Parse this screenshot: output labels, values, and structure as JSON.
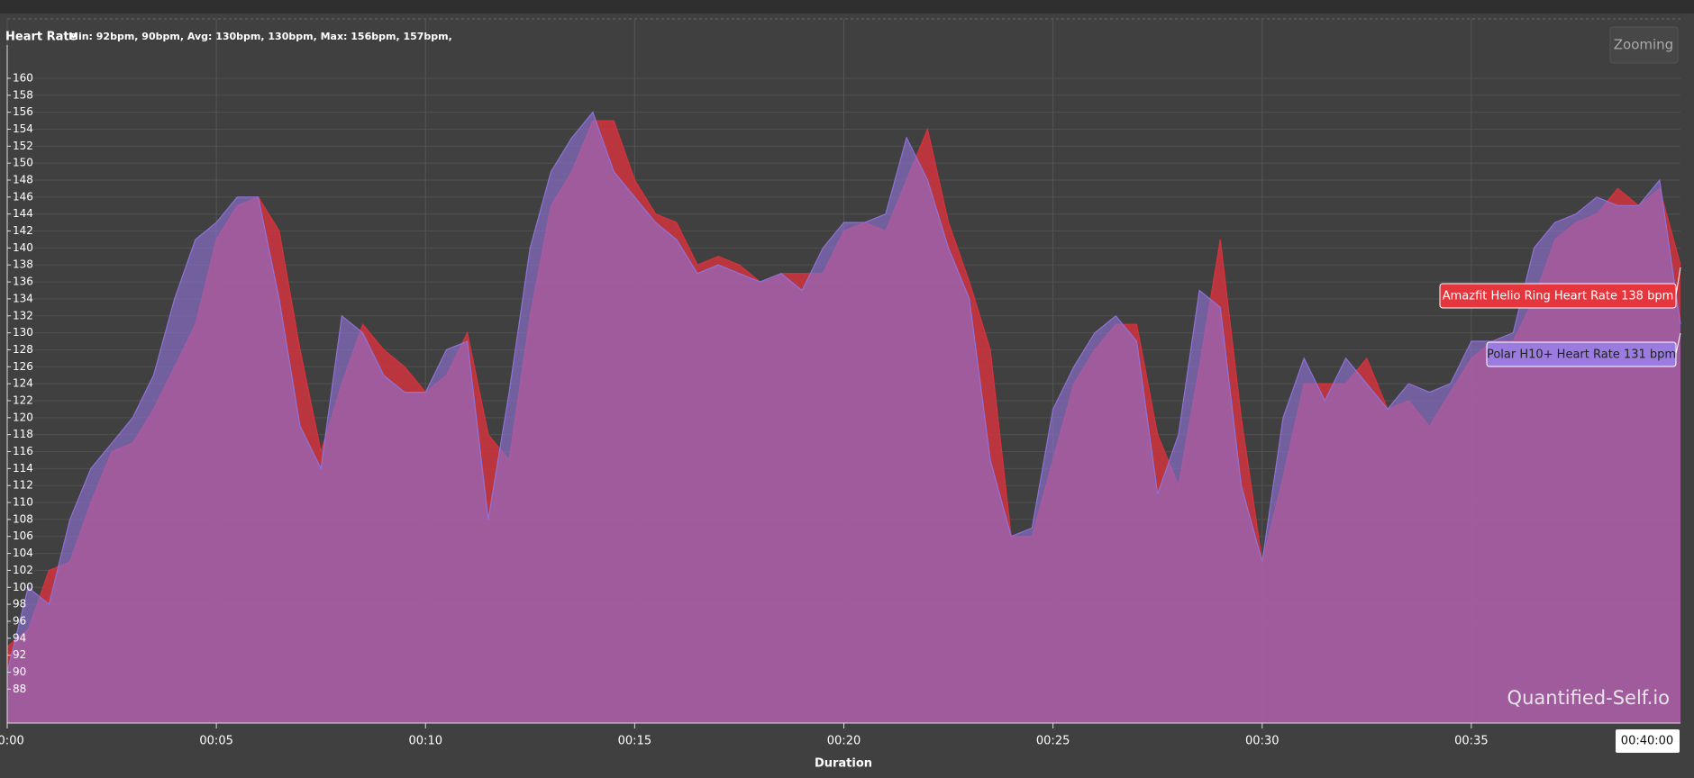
{
  "chart_data": {
    "type": "area",
    "title": "Heart Rate",
    "subtitle": "Min: 92bpm, 90bpm, Avg: 130bpm, 130bpm, Max: 156bpm, 157bpm,",
    "xlabel": "Duration",
    "button": "Zooming",
    "watermark": "Quantified-Self.io",
    "crosshair_label": "00:40:00",
    "x": [
      0,
      0.5,
      1,
      1.5,
      2,
      2.5,
      3,
      3.5,
      4,
      4.5,
      5,
      5.5,
      6,
      6.5,
      7,
      7.5,
      8,
      8.5,
      9,
      9.5,
      10,
      10.5,
      11,
      11.5,
      12,
      12.5,
      13,
      13.5,
      14,
      14.5,
      15,
      15.5,
      16,
      16.5,
      17,
      17.5,
      18,
      18.5,
      19,
      19.5,
      20,
      20.5,
      21,
      21.5,
      22,
      22.5,
      23,
      23.5,
      24,
      24.5,
      25,
      25.5,
      26,
      26.5,
      27,
      27.5,
      28,
      28.5,
      29,
      29.5,
      30,
      30.5,
      31,
      31.5,
      32,
      32.5,
      33,
      33.5,
      34,
      34.5,
      35,
      35.5,
      36,
      36.5,
      37,
      37.5,
      38,
      38.5,
      39,
      39.5,
      40
    ],
    "series": [
      {
        "name": "Amazfit Helio Ring Heart Rate",
        "color": "#d8323c",
        "values": [
          93,
          95,
          102,
          103,
          110,
          116,
          117,
          121,
          126,
          131,
          141,
          145,
          146,
          142,
          128,
          116,
          124,
          131,
          128,
          126,
          123,
          125,
          130,
          118,
          115,
          132,
          145,
          149,
          155,
          155,
          148,
          144,
          143,
          138,
          139,
          138,
          136,
          137,
          137,
          137,
          142,
          143,
          142,
          148,
          154,
          143,
          136,
          128,
          106,
          106,
          115,
          124,
          128,
          131,
          131,
          118,
          112,
          126,
          141,
          120,
          103,
          113,
          124,
          124,
          124,
          127,
          121,
          122,
          119,
          123,
          127,
          129,
          129,
          134,
          141,
          143,
          144,
          147,
          145,
          147,
          138
        ]
      },
      {
        "name": "Polar H10+ Heart Rate",
        "color": "#8f72d8",
        "values": [
          90,
          100,
          98,
          108,
          114,
          117,
          120,
          125,
          134,
          141,
          143,
          146,
          146,
          134,
          119,
          114,
          132,
          130,
          125,
          123,
          123,
          128,
          129,
          108,
          123,
          140,
          149,
          153,
          156,
          149,
          146,
          143,
          141,
          137,
          138,
          137,
          136,
          137,
          135,
          140,
          143,
          143,
          144,
          153,
          148,
          140,
          134,
          115,
          106,
          107,
          121,
          126,
          130,
          132,
          129,
          111,
          118,
          135,
          133,
          112,
          103,
          120,
          127,
          122,
          127,
          124,
          121,
          124,
          123,
          124,
          129,
          129,
          130,
          140,
          143,
          144,
          146,
          145,
          145,
          148,
          131
        ]
      }
    ],
    "tooltips": [
      {
        "text": "Amazfit Helio Ring Heart Rate 138 bpm",
        "color": "#e5363d"
      },
      {
        "text": "Polar H10+ Heart Rate 131 bpm",
        "color": "#9b7be0"
      }
    ],
    "xlim": [
      0,
      40
    ],
    "xticks": [
      {
        "value": 0,
        "label": "00:00"
      },
      {
        "value": 5,
        "label": "00:05"
      },
      {
        "value": 10,
        "label": "00:10"
      },
      {
        "value": 15,
        "label": "00:15"
      },
      {
        "value": 20,
        "label": "00:20"
      },
      {
        "value": 25,
        "label": "00:25"
      },
      {
        "value": 30,
        "label": "00:30"
      },
      {
        "value": 35,
        "label": "00:35"
      }
    ],
    "ylim": [
      84,
      167
    ],
    "yticks": [
      88,
      90,
      92,
      94,
      96,
      98,
      100,
      102,
      104,
      106,
      108,
      110,
      112,
      114,
      116,
      118,
      120,
      122,
      124,
      126,
      128,
      130,
      132,
      134,
      136,
      138,
      140,
      142,
      144,
      146,
      148,
      150,
      152,
      154,
      156,
      158,
      160
    ],
    "grid": true
  }
}
